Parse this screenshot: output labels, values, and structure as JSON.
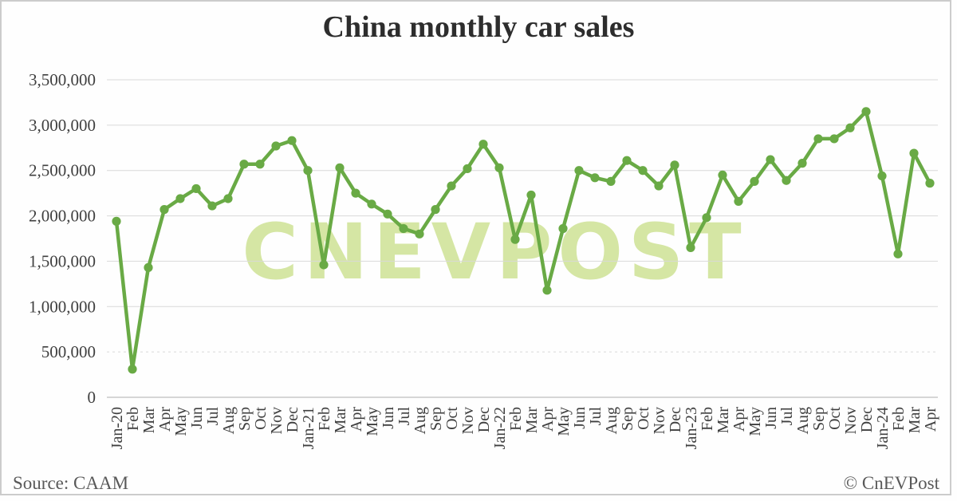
{
  "header": {
    "title": "China monthly car sales"
  },
  "footer": {
    "source": "Source: CAAM",
    "copyright": "© CnEVPost"
  },
  "watermark": {
    "text": "CNEVPOST"
  },
  "colors": {
    "line": "#69aa45",
    "marker": "#69aa45",
    "watermark": "#d5e6a4",
    "gridline": "#d9d9d9",
    "title": "#2d2d2d",
    "axis_text": "#3f3f3f",
    "footer_text": "#595959"
  },
  "chart_data": {
    "type": "line",
    "title": "China monthly car sales",
    "xlabel": "",
    "ylabel": "",
    "x": [
      "Jan-20",
      "Feb",
      "Mar",
      "Apr",
      "May",
      "Jun",
      "Jul",
      "Aug",
      "Sep",
      "Oct",
      "Nov",
      "Dec",
      "Jan-21",
      "Feb",
      "Mar",
      "Apr",
      "May",
      "Jun",
      "Jul",
      "Aug",
      "Sep",
      "Oct",
      "Nov",
      "Dec",
      "Jan-22",
      "Feb",
      "Mar",
      "Apr",
      "May",
      "Jun",
      "Jul",
      "Aug",
      "Sep",
      "Oct",
      "Nov",
      "Dec",
      "Jan-23",
      "Feb",
      "Mar",
      "Apr",
      "May",
      "Jun",
      "Jul",
      "Aug",
      "Sep",
      "Oct",
      "Nov",
      "Dec",
      "Jan-24",
      "Feb",
      "Mar",
      "Apr"
    ],
    "values": [
      1940000,
      310000,
      1430000,
      2070000,
      2190000,
      2300000,
      2110000,
      2190000,
      2570000,
      2570000,
      2770000,
      2830000,
      2500000,
      1460000,
      2530000,
      2250000,
      2130000,
      2020000,
      1860000,
      1800000,
      2070000,
      2330000,
      2520000,
      2790000,
      2530000,
      1740000,
      2230000,
      1180000,
      1860000,
      2500000,
      2420000,
      2380000,
      2610000,
      2500000,
      2330000,
      2560000,
      1650000,
      1980000,
      2450000,
      2160000,
      2380000,
      2620000,
      2390000,
      2580000,
      2850000,
      2850000,
      2970000,
      3150000,
      2440000,
      1580000,
      2690000,
      2360000
    ],
    "ylim": [
      0,
      3500000
    ],
    "y_ticks": [
      {
        "value": 0,
        "label": "0"
      },
      {
        "value": 500000,
        "label": "500,000",
        "style": "dashed"
      },
      {
        "value": 1000000,
        "label": "1,000,000"
      },
      {
        "value": 1500000,
        "label": "1,500,000"
      },
      {
        "value": 2000000,
        "label": "2,000,000"
      },
      {
        "value": 2500000,
        "label": "2,500,000"
      },
      {
        "value": 3000000,
        "label": "3,000,000"
      },
      {
        "value": 3500000,
        "label": "3,500,000"
      }
    ],
    "grid": "horizontal",
    "legend": "none",
    "marker": "circle",
    "x_label_rotation": -90
  }
}
